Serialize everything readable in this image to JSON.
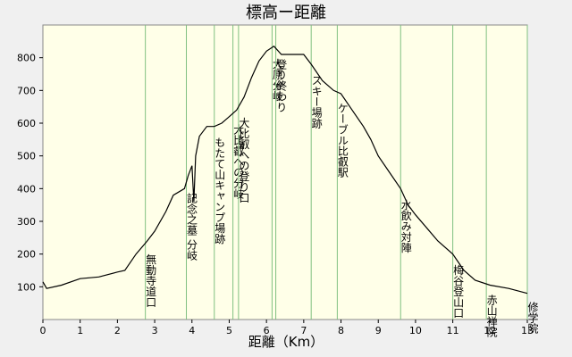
{
  "chart_data": {
    "type": "line",
    "title": "標高ー距離",
    "xlabel": "距離（Km）",
    "x": [
      0,
      0.1,
      0.5,
      1,
      1.5,
      2,
      2.2,
      2.5,
      2.8,
      3,
      3.3,
      3.5,
      3.8,
      3.9,
      4.0,
      4.05,
      4.1,
      4.2,
      4.4,
      4.6,
      4.8,
      5.0,
      5.2,
      5.4,
      5.6,
      5.8,
      6.0,
      6.2,
      6.4,
      7.0,
      7.2,
      7.5,
      7.8,
      8.0,
      8.3,
      8.6,
      8.8,
      9.0,
      9.3,
      9.6,
      9.8,
      10.0,
      10.3,
      10.6,
      11.0,
      11.3,
      11.6,
      12.0,
      12.5,
      13.0
    ],
    "values": [
      115,
      95,
      105,
      125,
      130,
      145,
      150,
      200,
      240,
      270,
      330,
      380,
      400,
      440,
      470,
      360,
      500,
      560,
      590,
      590,
      600,
      620,
      640,
      680,
      740,
      790,
      820,
      835,
      810,
      810,
      780,
      730,
      700,
      690,
      640,
      590,
      550,
      500,
      450,
      400,
      350,
      320,
      280,
      240,
      200,
      150,
      120,
      105,
      95,
      80
    ],
    "color": "#000000",
    "xlim": [
      0,
      13
    ],
    "ylim": [
      0,
      900
    ],
    "xticks": [
      0,
      1,
      2,
      3,
      4,
      5,
      6,
      7,
      8,
      9,
      10,
      11,
      12,
      13
    ],
    "yticks": [
      100,
      200,
      300,
      400,
      500,
      600,
      700,
      800
    ],
    "annotation_color": "#80c080",
    "annotations": [
      {
        "x": 2.75,
        "label": "無動寺道口"
      },
      {
        "x": 3.85,
        "label": "記念之墓 分岐"
      },
      {
        "x": 4.6,
        "label": "もたて山キャンプ場跡"
      },
      {
        "x": 5.1,
        "label": "大比叡への分岐"
      },
      {
        "x": 5.25,
        "label": "大比叡への登り口"
      },
      {
        "x": 6.15,
        "label": "大原分岐"
      },
      {
        "x": 6.25,
        "label": "登り終わり"
      },
      {
        "x": 7.2,
        "label": "スキー場跡"
      },
      {
        "x": 7.9,
        "label": "ケーブル比叡駅"
      },
      {
        "x": 9.6,
        "label": "水飲み対陣"
      },
      {
        "x": 11.0,
        "label": "梅谷登山口"
      },
      {
        "x": 11.9,
        "label": "赤山禅院"
      },
      {
        "x": 13.0,
        "label": "修学院"
      }
    ]
  }
}
